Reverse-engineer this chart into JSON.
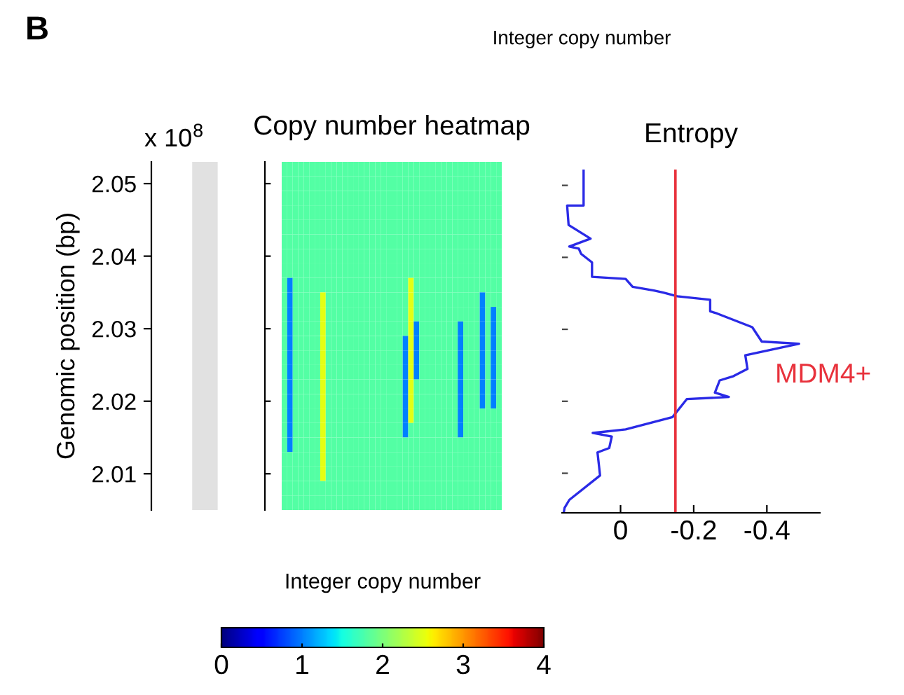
{
  "chart_data": [
    {
      "type": "heatmap",
      "title": "Copy number heatmap",
      "ylabel": "Genomic position (bp)",
      "clabel": "Integer copy number",
      "annotations": [
        "B",
        "Integer copy number",
        "x 10$^{8}$"
      ],
      "clim": [
        0,
        4
      ],
      "cticks": [
        0,
        1,
        2,
        3,
        4
      ],
      "categories": [
        null,
        null,
        null,
        null,
        null,
        null,
        null,
        null,
        null,
        null,
        null,
        null,
        null,
        null,
        null,
        null,
        null,
        null,
        null,
        null,
        null,
        null,
        null,
        null,
        null,
        null,
        null,
        null,
        null,
        null,
        null,
        null,
        null,
        null,
        null,
        null,
        null,
        null,
        null,
        null
      ],
      "y_categories": [
        null,
        "2.05",
        null,
        null,
        null,
        null,
        "2.04",
        null,
        null,
        null,
        null,
        "2.03",
        null,
        null,
        null,
        null,
        "2.02",
        null,
        null,
        null,
        null,
        "2.01",
        null,
        null
      ],
      "cells": [
        [
          1.8,
          1.8,
          1.8,
          1.8,
          1.8,
          1.8,
          1.8,
          1.8,
          1.8,
          1.8,
          1.8,
          1.8,
          1.8,
          1.8,
          1.8,
          1.8,
          1.8,
          1.8,
          1.8,
          1.8,
          1.8,
          1.8,
          1.8,
          1.8,
          1.8,
          1.8,
          1.8,
          1.8,
          1.8,
          1.8,
          1.8,
          1.8,
          1.8,
          1.8,
          1.8,
          1.8,
          1.8,
          1.8,
          1.8,
          1.8
        ],
        [
          1.8,
          1.8,
          1.8,
          1.8,
          1.8,
          1.8,
          1.8,
          1.8,
          1.8,
          1.8,
          1.8,
          1.8,
          1.8,
          1.8,
          1.8,
          1.8,
          1.8,
          1.8,
          1.8,
          1.8,
          1.8,
          1.8,
          1.8,
          1.8,
          1.8,
          1.8,
          1.8,
          1.8,
          1.8,
          1.8,
          1.8,
          1.8,
          1.8,
          1.8,
          1.8,
          1.8,
          1.8,
          1.8,
          1.8,
          1.8
        ],
        [
          1.8,
          1.8,
          1.8,
          1.8,
          1.8,
          1.8,
          1.8,
          1.8,
          1.8,
          1.8,
          1.8,
          1.8,
          1.8,
          1.8,
          1.8,
          1.8,
          1.8,
          1.8,
          1.8,
          1.8,
          1.8,
          1.8,
          1.8,
          1.8,
          1.8,
          1.8,
          1.8,
          1.8,
          1.8,
          1.8,
          1.8,
          1.8,
          1.8,
          1.8,
          1.8,
          1.8,
          1.8,
          1.8,
          1.8,
          1.8
        ],
        [
          1.8,
          1.8,
          1.8,
          1.8,
          1.8,
          1.8,
          1.8,
          1.8,
          1.8,
          1.8,
          1.8,
          1.8,
          1.8,
          1.8,
          1.8,
          1.8,
          1.8,
          1.8,
          1.8,
          1.8,
          1.8,
          1.8,
          1.8,
          1.8,
          1.8,
          1.8,
          1.8,
          1.8,
          1.8,
          1.8,
          1.8,
          1.8,
          1.8,
          1.8,
          1.8,
          1.8,
          1.8,
          1.8,
          1.8,
          1.8
        ],
        [
          1.8,
          1.8,
          1.8,
          1.8,
          1.8,
          1.8,
          1.8,
          1.8,
          1.8,
          1.8,
          1.8,
          1.8,
          1.8,
          1.8,
          1.8,
          1.8,
          1.8,
          1.8,
          1.8,
          1.8,
          1.8,
          1.8,
          1.8,
          1.8,
          1.8,
          1.8,
          1.8,
          1.8,
          1.8,
          1.8,
          1.8,
          1.8,
          1.8,
          1.8,
          1.8,
          1.8,
          1.8,
          1.8,
          1.8,
          1.8
        ],
        [
          1.8,
          1.8,
          1.8,
          1.8,
          1.8,
          1.8,
          1.8,
          1.8,
          1.8,
          1.8,
          1.8,
          1.8,
          1.8,
          1.8,
          1.8,
          1.8,
          1.8,
          1.8,
          1.8,
          1.8,
          1.8,
          1.8,
          1.8,
          1.8,
          1.8,
          1.8,
          1.8,
          1.8,
          1.8,
          1.8,
          1.8,
          1.8,
          1.8,
          1.8,
          1.8,
          1.8,
          1.8,
          1.8,
          1.8,
          1.8
        ],
        [
          1.8,
          1.8,
          1.8,
          1.8,
          1.8,
          1.8,
          1.8,
          1.8,
          1.8,
          1.8,
          1.8,
          1.8,
          1.8,
          1.8,
          1.8,
          1.8,
          1.8,
          1.8,
          1.8,
          1.8,
          1.8,
          1.8,
          1.8,
          1.8,
          1.8,
          1.8,
          1.8,
          1.8,
          1.8,
          1.8,
          1.8,
          1.8,
          1.8,
          1.8,
          1.8,
          1.8,
          1.8,
          1.8,
          1.8,
          1.8
        ],
        [
          1.8,
          1.8,
          1.8,
          1.8,
          1.8,
          1.8,
          1.8,
          1.8,
          1.8,
          1.8,
          1.8,
          1.8,
          1.8,
          1.8,
          1.8,
          1.8,
          1.8,
          1.8,
          1.8,
          1.8,
          1.8,
          1.8,
          1.8,
          1.8,
          1.8,
          1.8,
          1.8,
          1.8,
          1.8,
          1.8,
          1.8,
          1.8,
          1.8,
          1.8,
          1.8,
          1.8,
          1.8,
          1.8,
          1.8,
          1.8
        ],
        [
          1.8,
          1,
          1.8,
          1.8,
          1.8,
          1.8,
          1.8,
          1.8,
          1.8,
          1.8,
          1.8,
          1.8,
          1.8,
          1.8,
          1.8,
          1.8,
          1.8,
          1.8,
          1.8,
          1.8,
          1.8,
          1.8,
          1.8,
          2.5,
          1.8,
          1.8,
          1.8,
          1.8,
          1.8,
          1.8,
          1.8,
          1.8,
          1.8,
          1.8,
          1.8,
          1.8,
          1.8,
          1.8,
          1.8,
          1.8
        ],
        [
          1.8,
          1,
          1.8,
          1.8,
          1.8,
          1.8,
          1.8,
          2.5,
          1.8,
          1.8,
          1.8,
          1.8,
          1.8,
          1.8,
          1.8,
          1.8,
          1.8,
          1.8,
          1.8,
          1.8,
          1.8,
          1.8,
          1.8,
          2.5,
          1.8,
          1.8,
          1.8,
          1.8,
          1.8,
          1.8,
          1.8,
          1.8,
          1.8,
          1.8,
          1.8,
          1.8,
          1,
          1.8,
          1.8,
          1.8
        ],
        [
          1.8,
          1,
          1.8,
          1.8,
          1.8,
          1.8,
          1.8,
          2.5,
          1.8,
          1.8,
          1.8,
          1.8,
          1.8,
          1.8,
          1.8,
          1.8,
          1.8,
          1.8,
          1.8,
          1.8,
          1.8,
          1.8,
          1.8,
          2.5,
          1.8,
          1.8,
          1.8,
          1.8,
          1.8,
          1.8,
          1.8,
          1.8,
          1.8,
          1.8,
          1.8,
          1.8,
          1,
          1.8,
          1,
          1.8
        ],
        [
          1.8,
          1,
          1.8,
          1.8,
          1.8,
          1.8,
          1.8,
          2.5,
          1.8,
          1.8,
          1.8,
          1.8,
          1.8,
          1.8,
          1.8,
          1.8,
          1.8,
          1.8,
          1.8,
          1.8,
          1.8,
          1.8,
          1.8,
          2.5,
          1,
          1.8,
          1.8,
          1.8,
          1.8,
          1.8,
          1.8,
          1.8,
          1,
          1.8,
          1.8,
          1.8,
          1,
          1.8,
          1,
          1.8
        ],
        [
          1.8,
          1,
          1.8,
          1.8,
          1.8,
          1.8,
          1.8,
          2.5,
          1.8,
          1.8,
          1.8,
          1.8,
          1.8,
          1.8,
          1.8,
          1.8,
          1.8,
          1.8,
          1.8,
          1.8,
          1.8,
          1.8,
          1,
          2.5,
          1,
          1.8,
          1.8,
          1.8,
          1.8,
          1.8,
          1.8,
          1.8,
          1,
          1.8,
          1.8,
          1.8,
          1,
          1.8,
          1,
          1.8
        ],
        [
          1.8,
          1,
          1.8,
          1.8,
          1.8,
          1.8,
          1.8,
          2.5,
          1.8,
          1.8,
          1.8,
          1.8,
          1.8,
          1.8,
          1.8,
          1.8,
          1.8,
          1.8,
          1.8,
          1.8,
          1.8,
          1.8,
          1,
          2.5,
          1,
          1.8,
          1.8,
          1.8,
          1.8,
          1.8,
          1.8,
          1.8,
          1,
          1.8,
          1.8,
          1.8,
          1,
          1.8,
          1,
          1.8
        ],
        [
          1.8,
          1,
          1.8,
          1.8,
          1.8,
          1.8,
          1.8,
          2.5,
          1.8,
          1.8,
          1.8,
          1.8,
          1.8,
          1.8,
          1.8,
          1.8,
          1.8,
          1.8,
          1.8,
          1.8,
          1.8,
          1.8,
          1,
          2.5,
          1,
          1.8,
          1.8,
          1.8,
          1.8,
          1.8,
          1.8,
          1.8,
          1,
          1.8,
          1.8,
          1.8,
          1,
          1.8,
          1,
          1.8
        ],
        [
          1.8,
          1,
          1.8,
          1.8,
          1.8,
          1.8,
          1.8,
          2.5,
          1.8,
          1.8,
          1.8,
          1.8,
          1.8,
          1.8,
          1.8,
          1.8,
          1.8,
          1.8,
          1.8,
          1.8,
          1.8,
          1.8,
          1,
          2.5,
          1.8,
          1.8,
          1.8,
          1.8,
          1.8,
          1.8,
          1.8,
          1.8,
          1,
          1.8,
          1.8,
          1.8,
          1,
          1.8,
          1,
          1.8
        ],
        [
          1.8,
          1,
          1.8,
          1.8,
          1.8,
          1.8,
          1.8,
          2.5,
          1.8,
          1.8,
          1.8,
          1.8,
          1.8,
          1.8,
          1.8,
          1.8,
          1.8,
          1.8,
          1.8,
          1.8,
          1.8,
          1.8,
          1,
          2.5,
          1.8,
          1.8,
          1.8,
          1.8,
          1.8,
          1.8,
          1.8,
          1.8,
          1,
          1.8,
          1.8,
          1.8,
          1,
          1.8,
          1,
          1.8
        ],
        [
          1.8,
          1,
          1.8,
          1.8,
          1.8,
          1.8,
          1.8,
          2.5,
          1.8,
          1.8,
          1.8,
          1.8,
          1.8,
          1.8,
          1.8,
          1.8,
          1.8,
          1.8,
          1.8,
          1.8,
          1.8,
          1.8,
          1,
          2.5,
          1.8,
          1.8,
          1.8,
          1.8,
          1.8,
          1.8,
          1.8,
          1.8,
          1,
          1.8,
          1.8,
          1.8,
          1.8,
          1.8,
          1.8,
          1.8
        ],
        [
          1.8,
          1,
          1.8,
          1.8,
          1.8,
          1.8,
          1.8,
          2.5,
          1.8,
          1.8,
          1.8,
          1.8,
          1.8,
          1.8,
          1.8,
          1.8,
          1.8,
          1.8,
          1.8,
          1.8,
          1.8,
          1.8,
          1,
          1.8,
          1.8,
          1.8,
          1.8,
          1.8,
          1.8,
          1.8,
          1.8,
          1.8,
          1,
          1.8,
          1.8,
          1.8,
          1.8,
          1.8,
          1.8,
          1.8
        ],
        [
          1.8,
          1,
          1.8,
          1.8,
          1.8,
          1.8,
          1.8,
          2.5,
          1.8,
          1.8,
          1.8,
          1.8,
          1.8,
          1.8,
          1.8,
          1.8,
          1.8,
          1.8,
          1.8,
          1.8,
          1.8,
          1.8,
          1.8,
          1.8,
          1.8,
          1.8,
          1.8,
          1.8,
          1.8,
          1.8,
          1.8,
          1.8,
          1.8,
          1.8,
          1.8,
          1.8,
          1.8,
          1.8,
          1.8,
          1.8
        ],
        [
          1.8,
          1.8,
          1.8,
          1.8,
          1.8,
          1.8,
          1.8,
          2.5,
          1.8,
          1.8,
          1.8,
          1.8,
          1.8,
          1.8,
          1.8,
          1.8,
          1.8,
          1.8,
          1.8,
          1.8,
          1.8,
          1.8,
          1.8,
          1.8,
          1.8,
          1.8,
          1.8,
          1.8,
          1.8,
          1.8,
          1.8,
          1.8,
          1.8,
          1.8,
          1.8,
          1.8,
          1.8,
          1.8,
          1.8,
          1.8
        ],
        [
          1.8,
          1.8,
          1.8,
          1.8,
          1.8,
          1.8,
          1.8,
          2.5,
          1.8,
          1.8,
          1.8,
          1.8,
          1.8,
          1.8,
          1.8,
          1.8,
          1.8,
          1.8,
          1.8,
          1.8,
          1.8,
          1.8,
          1.8,
          1.8,
          1.8,
          1.8,
          1.8,
          1.8,
          1.8,
          1.8,
          1.8,
          1.8,
          1.8,
          1.8,
          1.8,
          1.8,
          1.8,
          1.8,
          1.8,
          1.8
        ],
        [
          1.8,
          1.8,
          1.8,
          1.8,
          1.8,
          1.8,
          1.8,
          1.8,
          1.8,
          1.8,
          1.8,
          1.8,
          1.8,
          1.8,
          1.8,
          1.8,
          1.8,
          1.8,
          1.8,
          1.8,
          1.8,
          1.8,
          1.8,
          1.8,
          1.8,
          1.8,
          1.8,
          1.8,
          1.8,
          1.8,
          1.8,
          1.8,
          1.8,
          1.8,
          1.8,
          1.8,
          1.8,
          1.8,
          1.8,
          1.8
        ],
        [
          1.8,
          1.8,
          1.8,
          1.8,
          1.8,
          1.8,
          1.8,
          1.8,
          1.8,
          1.8,
          1.8,
          1.8,
          1.8,
          1.8,
          1.8,
          1.8,
          1.8,
          1.8,
          1.8,
          1.8,
          1.8,
          1.8,
          1.8,
          1.8,
          1.8,
          1.8,
          1.8,
          1.8,
          1.8,
          1.8,
          1.8,
          1.8,
          1.8,
          1.8,
          1.8,
          1.8,
          1.8,
          1.8,
          1.8,
          1.8
        ]
      ]
    },
    {
      "type": "line",
      "title": "Entropy",
      "xlim": [
        0.16,
        -0.545
      ],
      "xticks": [
        0,
        -0.2,
        -0.4
      ],
      "ylim": [
        2.0045,
        2.0522
      ],
      "yticks": [
        2.01,
        2.02,
        2.03,
        2.04,
        2.05
      ],
      "tick_labels": "x",
      "ref_lines": [
        {
          "axis": "x",
          "value": -0.15,
          "color": "#e8323c"
        }
      ],
      "annotations": [
        "MDM4+"
      ],
      "series": [
        {
          "color": "#2a2ae6",
          "x": [
            0.101,
            0.101,
            0.146,
            0.142,
            0.082,
            0.14,
            0.114,
            0.108,
            0.078,
            0.078,
            -0.014,
            -0.033,
            -0.091,
            -0.117,
            -0.155,
            -0.245,
            -0.245,
            -0.264,
            -0.36,
            -0.386,
            -0.488,
            -0.341,
            -0.347,
            -0.309,
            -0.271,
            -0.258,
            -0.296,
            -0.181,
            -0.142,
            -0.014,
            0.076,
            0.024,
            0.031,
            0.063,
            0.056,
            0.14,
            0.153,
            0.155
          ],
          "values": [
            2.0521,
            2.0472,
            2.0472,
            2.0445,
            2.0426,
            2.0415,
            2.0412,
            2.0405,
            2.0393,
            2.0373,
            2.037,
            2.0359,
            2.0354,
            2.0351,
            2.0346,
            2.0341,
            2.0325,
            2.0322,
            2.0303,
            2.0283,
            2.028,
            2.0264,
            2.0245,
            2.0235,
            2.0229,
            2.0212,
            2.0206,
            2.0203,
            2.0178,
            2.0161,
            2.0156,
            2.0151,
            2.0135,
            2.0129,
            2.0097,
            2.0063,
            2.0052,
            2.0046
          ]
        }
      ]
    }
  ]
}
